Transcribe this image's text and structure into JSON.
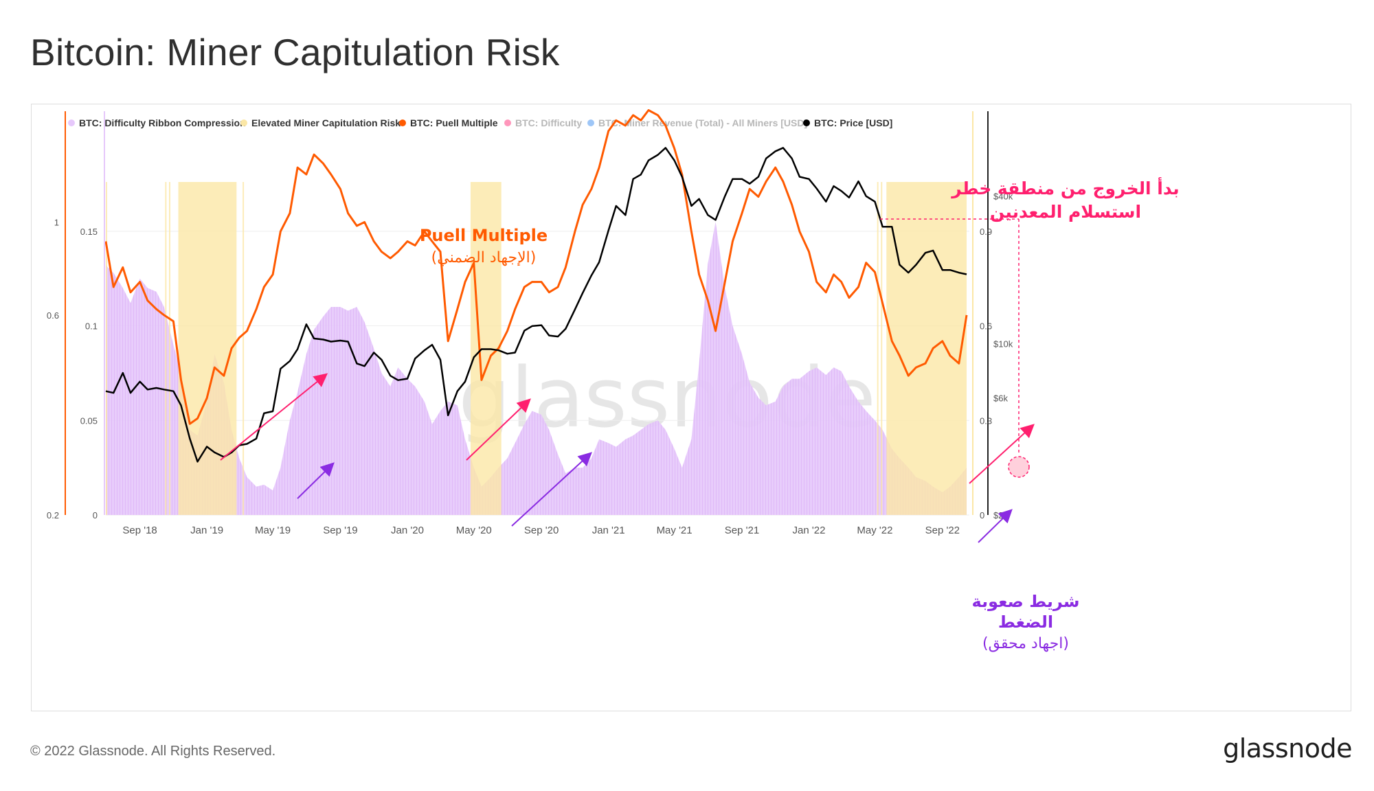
{
  "page": {
    "title": "Bitcoin: Miner Capitulation Risk",
    "copyright": "© 2022 Glassnode. All Rights Reserved.",
    "brand": "glassnode",
    "watermark": "glassnode"
  },
  "colors": {
    "ribbon": "#e6c8fb",
    "capitulation": "#fbe7a6",
    "puell": "#ff5a00",
    "difficulty": "#ff2d78",
    "revenue": "#3d8ef0",
    "price": "#000000",
    "annotation_pink": "#ff1f6e",
    "annotation_purple": "#8a2be2"
  },
  "chart_data": {
    "type": "line",
    "title": "Bitcoin: Miner Capitulation Risk",
    "legend": [
      {
        "name": "BTC: Difficulty Ribbon Compression",
        "color": "#e6c8fb",
        "active": true
      },
      {
        "name": "Elevated Miner Capitulation Risk",
        "color": "#fbe7a6",
        "active": true
      },
      {
        "name": "BTC: Puell Multiple",
        "color": "#ff5a00",
        "active": true
      },
      {
        "name": "BTC: Difficulty",
        "color": "#ff2d78",
        "active": false
      },
      {
        "name": "BTC: Miner Revenue (Total) - All Miners [USD]",
        "color": "#3d8ef0",
        "active": false
      },
      {
        "name": "BTC: Price [USD]",
        "color": "#000000",
        "active": true
      }
    ],
    "legend_position": "top",
    "x_range": [
      "2018-07-01",
      "2022-10-20"
    ],
    "x_ticks": [
      {
        "label": "Sep '18",
        "date": "2018-09-01"
      },
      {
        "label": "Jan '19",
        "date": "2019-01-01"
      },
      {
        "label": "May '19",
        "date": "2019-05-01"
      },
      {
        "label": "Sep '19",
        "date": "2019-09-01"
      },
      {
        "label": "Jan '20",
        "date": "2020-01-01"
      },
      {
        "label": "May '20",
        "date": "2020-05-01"
      },
      {
        "label": "Sep '20",
        "date": "2020-09-01"
      },
      {
        "label": "Jan '21",
        "date": "2021-01-01"
      },
      {
        "label": "May '21",
        "date": "2021-05-01"
      },
      {
        "label": "Sep '21",
        "date": "2021-09-01"
      },
      {
        "label": "Jan '22",
        "date": "2022-01-01"
      },
      {
        "label": "May '22",
        "date": "2022-05-01"
      },
      {
        "label": "Sep '22",
        "date": "2022-09-01"
      }
    ],
    "axes": {
      "puell_left": {
        "range": [
          0.2,
          1.6
        ],
        "ticks": [
          "0.2",
          "0.6",
          "1"
        ],
        "tick_values": [
          0.2,
          0.6,
          1.0
        ],
        "scale": "log"
      },
      "ribbon_left": {
        "range": [
          0,
          0.2
        ],
        "ticks": [
          "0",
          "0.05",
          "0.1",
          "0.15"
        ],
        "tick_values": [
          0,
          0.05,
          0.1,
          0.15
        ]
      },
      "ribbon_right": {
        "range": [
          0,
          1.2
        ],
        "ticks": [
          "0",
          "0.3",
          "0.6",
          "0.9"
        ],
        "tick_values": [
          0,
          0.3,
          0.6,
          0.9
        ]
      },
      "price_right": {
        "range": [
          2000,
          70000
        ],
        "ticks": [
          "$2k",
          "$6k",
          "$10k",
          "$40k"
        ],
        "tick_values": [
          2000,
          6000,
          10000,
          40000
        ],
        "scale": "log"
      }
    },
    "grid": true,
    "capitulation_periods": [
      [
        "2018-07-01",
        "2018-07-02"
      ],
      [
        "2018-10-17",
        "2018-10-19"
      ],
      [
        "2018-10-24",
        "2018-10-26"
      ],
      [
        "2018-11-10",
        "2019-02-24"
      ],
      [
        "2019-03-07",
        "2019-03-09"
      ],
      [
        "2020-04-25",
        "2020-06-20"
      ],
      [
        "2022-05-05",
        "2022-05-07"
      ],
      [
        "2022-05-12",
        "2022-05-14"
      ],
      [
        "2022-05-22",
        "2022-10-15"
      ]
    ],
    "series": [
      {
        "name": "BTC: Difficulty Ribbon Compression",
        "axis": "ribbon_left",
        "x": [
          "2018-07-01",
          "2018-07-15",
          "2018-08-01",
          "2018-08-15",
          "2018-09-01",
          "2018-09-15",
          "2018-10-01",
          "2018-10-15",
          "2018-11-01",
          "2018-11-15",
          "2018-12-01",
          "2018-12-15",
          "2019-01-01",
          "2019-01-15",
          "2019-02-01",
          "2019-02-15",
          "2019-03-01",
          "2019-03-15",
          "2019-04-01",
          "2019-04-15",
          "2019-05-01",
          "2019-05-15",
          "2019-06-01",
          "2019-06-15",
          "2019-07-01",
          "2019-07-15",
          "2019-08-01",
          "2019-08-15",
          "2019-09-01",
          "2019-09-15",
          "2019-10-01",
          "2019-10-15",
          "2019-11-01",
          "2019-11-15",
          "2019-12-01",
          "2019-12-15",
          "2020-01-01",
          "2020-01-15",
          "2020-02-01",
          "2020-02-15",
          "2020-03-01",
          "2020-03-15",
          "2020-04-01",
          "2020-04-15",
          "2020-05-01",
          "2020-05-15",
          "2020-06-01",
          "2020-06-15",
          "2020-07-01",
          "2020-07-15",
          "2020-08-01",
          "2020-08-15",
          "2020-09-01",
          "2020-09-15",
          "2020-10-01",
          "2020-10-15",
          "2020-11-01",
          "2020-11-15",
          "2020-12-01",
          "2020-12-15",
          "2021-01-01",
          "2021-01-15",
          "2021-02-01",
          "2021-02-15",
          "2021-03-01",
          "2021-03-15",
          "2021-04-01",
          "2021-04-15",
          "2021-05-01",
          "2021-05-15",
          "2021-06-01",
          "2021-06-15",
          "2021-07-01",
          "2021-07-15",
          "2021-08-01",
          "2021-08-15",
          "2021-09-01",
          "2021-09-15",
          "2021-10-01",
          "2021-10-15",
          "2021-11-01",
          "2021-11-15",
          "2021-12-01",
          "2021-12-15",
          "2022-01-01",
          "2022-01-15",
          "2022-02-01",
          "2022-02-15",
          "2022-03-01",
          "2022-03-15",
          "2022-04-01",
          "2022-04-15",
          "2022-05-01",
          "2022-05-15",
          "2022-06-01",
          "2022-06-15",
          "2022-07-01",
          "2022-07-15",
          "2022-08-01",
          "2022-08-15",
          "2022-09-01",
          "2022-09-15",
          "2022-10-01",
          "2022-10-15"
        ],
        "values": [
          0.132,
          0.128,
          0.12,
          0.112,
          0.125,
          0.12,
          0.118,
          0.11,
          0.09,
          0.075,
          0.045,
          0.042,
          0.06,
          0.085,
          0.07,
          0.045,
          0.03,
          0.02,
          0.015,
          0.016,
          0.013,
          0.025,
          0.05,
          0.065,
          0.085,
          0.098,
          0.105,
          0.11,
          0.11,
          0.108,
          0.11,
          0.102,
          0.088,
          0.075,
          0.068,
          0.078,
          0.072,
          0.068,
          0.06,
          0.048,
          0.055,
          0.06,
          0.058,
          0.04,
          0.025,
          0.015,
          0.02,
          0.025,
          0.03,
          0.038,
          0.048,
          0.055,
          0.053,
          0.045,
          0.032,
          0.022,
          0.025,
          0.025,
          0.03,
          0.04,
          0.038,
          0.036,
          0.04,
          0.042,
          0.045,
          0.048,
          0.05,
          0.045,
          0.035,
          0.025,
          0.04,
          0.08,
          0.133,
          0.155,
          0.12,
          0.1,
          0.085,
          0.07,
          0.062,
          0.058,
          0.06,
          0.068,
          0.072,
          0.072,
          0.076,
          0.078,
          0.074,
          0.078,
          0.076,
          0.068,
          0.06,
          0.055,
          0.05,
          0.045,
          0.035,
          0.03,
          0.025,
          0.02,
          0.018,
          0.015,
          0.012,
          0.015,
          0.02,
          0.025
        ]
      },
      {
        "name": "BTC: Puell Multiple",
        "axis": "puell_left",
        "x": [
          "2018-07-01",
          "2018-07-15",
          "2018-08-01",
          "2018-08-15",
          "2018-09-01",
          "2018-09-15",
          "2018-10-01",
          "2018-10-15",
          "2018-11-01",
          "2018-11-15",
          "2018-12-01",
          "2018-12-15",
          "2019-01-01",
          "2019-01-15",
          "2019-02-01",
          "2019-02-15",
          "2019-03-01",
          "2019-03-15",
          "2019-04-01",
          "2019-04-15",
          "2019-05-01",
          "2019-05-15",
          "2019-06-01",
          "2019-06-15",
          "2019-07-01",
          "2019-07-15",
          "2019-08-01",
          "2019-08-15",
          "2019-09-01",
          "2019-09-15",
          "2019-10-01",
          "2019-10-15",
          "2019-11-01",
          "2019-11-15",
          "2019-12-01",
          "2019-12-15",
          "2020-01-01",
          "2020-01-15",
          "2020-02-01",
          "2020-02-15",
          "2020-03-01",
          "2020-03-15",
          "2020-04-01",
          "2020-04-15",
          "2020-05-01",
          "2020-05-15",
          "2020-06-01",
          "2020-06-15",
          "2020-07-01",
          "2020-07-15",
          "2020-08-01",
          "2020-08-15",
          "2020-09-01",
          "2020-09-15",
          "2020-10-01",
          "2020-10-15",
          "2020-11-01",
          "2020-11-15",
          "2020-12-01",
          "2020-12-15",
          "2021-01-01",
          "2021-01-15",
          "2021-02-01",
          "2021-02-15",
          "2021-03-01",
          "2021-03-15",
          "2021-04-01",
          "2021-04-15",
          "2021-05-01",
          "2021-05-15",
          "2021-06-01",
          "2021-06-15",
          "2021-07-01",
          "2021-07-15",
          "2021-08-01",
          "2021-08-15",
          "2021-09-01",
          "2021-09-15",
          "2021-10-01",
          "2021-10-15",
          "2021-11-01",
          "2021-11-15",
          "2021-12-01",
          "2021-12-15",
          "2022-01-01",
          "2022-01-15",
          "2022-02-01",
          "2022-02-15",
          "2022-03-01",
          "2022-03-15",
          "2022-04-01",
          "2022-04-15",
          "2022-05-01",
          "2022-05-15",
          "2022-06-01",
          "2022-06-15",
          "2022-07-01",
          "2022-07-15",
          "2022-08-01",
          "2022-08-15",
          "2022-09-01",
          "2022-09-15",
          "2022-10-01",
          "2022-10-15"
        ],
        "values": [
          0.9,
          0.7,
          0.78,
          0.68,
          0.72,
          0.65,
          0.62,
          0.6,
          0.58,
          0.42,
          0.33,
          0.34,
          0.38,
          0.45,
          0.43,
          0.5,
          0.53,
          0.55,
          0.62,
          0.7,
          0.75,
          0.95,
          1.05,
          1.35,
          1.3,
          1.45,
          1.38,
          1.3,
          1.2,
          1.05,
          0.98,
          1.0,
          0.9,
          0.85,
          0.82,
          0.85,
          0.9,
          0.88,
          0.95,
          0.9,
          0.85,
          0.52,
          0.62,
          0.72,
          0.8,
          0.42,
          0.48,
          0.5,
          0.55,
          0.62,
          0.7,
          0.72,
          0.72,
          0.68,
          0.7,
          0.78,
          0.95,
          1.1,
          1.2,
          1.35,
          1.65,
          1.75,
          1.7,
          1.8,
          1.75,
          1.85,
          1.8,
          1.7,
          1.5,
          1.3,
          0.95,
          0.75,
          0.65,
          0.55,
          0.72,
          0.9,
          1.05,
          1.2,
          1.15,
          1.25,
          1.35,
          1.25,
          1.1,
          0.95,
          0.85,
          0.72,
          0.68,
          0.75,
          0.72,
          0.66,
          0.7,
          0.8,
          0.76,
          0.64,
          0.52,
          0.48,
          0.43,
          0.45,
          0.46,
          0.5,
          0.52,
          0.48,
          0.46,
          0.6
        ]
      },
      {
        "name": "BTC: Price [USD]",
        "axis": "price_right",
        "x": [
          "2018-07-01",
          "2018-07-15",
          "2018-08-01",
          "2018-08-15",
          "2018-09-01",
          "2018-09-15",
          "2018-10-01",
          "2018-10-15",
          "2018-11-01",
          "2018-11-15",
          "2018-12-01",
          "2018-12-15",
          "2019-01-01",
          "2019-01-15",
          "2019-02-01",
          "2019-02-15",
          "2019-03-01",
          "2019-03-15",
          "2019-04-01",
          "2019-04-15",
          "2019-05-01",
          "2019-05-15",
          "2019-06-01",
          "2019-06-15",
          "2019-07-01",
          "2019-07-15",
          "2019-08-01",
          "2019-08-15",
          "2019-09-01",
          "2019-09-15",
          "2019-10-01",
          "2019-10-15",
          "2019-11-01",
          "2019-11-15",
          "2019-12-01",
          "2019-12-15",
          "2020-01-01",
          "2020-01-15",
          "2020-02-01",
          "2020-02-15",
          "2020-03-01",
          "2020-03-15",
          "2020-04-01",
          "2020-04-15",
          "2020-05-01",
          "2020-05-15",
          "2020-06-01",
          "2020-06-15",
          "2020-07-01",
          "2020-07-15",
          "2020-08-01",
          "2020-08-15",
          "2020-09-01",
          "2020-09-15",
          "2020-10-01",
          "2020-10-15",
          "2020-11-01",
          "2020-11-15",
          "2020-12-01",
          "2020-12-15",
          "2021-01-01",
          "2021-01-15",
          "2021-02-01",
          "2021-02-15",
          "2021-03-01",
          "2021-03-15",
          "2021-04-01",
          "2021-04-15",
          "2021-05-01",
          "2021-05-15",
          "2021-06-01",
          "2021-06-15",
          "2021-07-01",
          "2021-07-15",
          "2021-08-01",
          "2021-08-15",
          "2021-09-01",
          "2021-09-15",
          "2021-10-01",
          "2021-10-15",
          "2021-11-01",
          "2021-11-15",
          "2021-12-01",
          "2021-12-15",
          "2022-01-01",
          "2022-01-15",
          "2022-02-01",
          "2022-02-15",
          "2022-03-01",
          "2022-03-15",
          "2022-04-01",
          "2022-04-15",
          "2022-05-01",
          "2022-05-15",
          "2022-06-01",
          "2022-06-15",
          "2022-07-01",
          "2022-07-15",
          "2022-08-01",
          "2022-08-15",
          "2022-09-01",
          "2022-09-15",
          "2022-10-01",
          "2022-10-15"
        ],
        "values": [
          6400,
          6300,
          7600,
          6300,
          7000,
          6500,
          6600,
          6500,
          6400,
          5600,
          4100,
          3300,
          3800,
          3600,
          3450,
          3600,
          3850,
          3900,
          4100,
          5200,
          5300,
          7900,
          8500,
          9500,
          12000,
          10500,
          10400,
          10200,
          10300,
          10200,
          8300,
          8100,
          9200,
          8600,
          7400,
          7100,
          7200,
          8700,
          9400,
          9900,
          8600,
          5100,
          6400,
          7000,
          8800,
          9500,
          9500,
          9400,
          9100,
          9200,
          11300,
          11800,
          11900,
          10800,
          10700,
          11500,
          13800,
          16100,
          19000,
          21500,
          29000,
          36500,
          33500,
          47000,
          49000,
          56000,
          59000,
          63000,
          56000,
          48000,
          36500,
          39000,
          33500,
          32000,
          40000,
          47000,
          47000,
          45000,
          48000,
          57000,
          61000,
          63000,
          57000,
          48000,
          47000,
          43000,
          38000,
          44000,
          42000,
          39500,
          46000,
          40000,
          38000,
          30000,
          30000,
          21000,
          19500,
          21000,
          23500,
          24000,
          20000,
          20000,
          19500,
          19200
        ]
      }
    ],
    "annotations": [
      {
        "text": "Puell Multiple",
        "color": "#ff5a00"
      },
      {
        "text": "(الإجهاد الضمني)",
        "color": "#ff5a00"
      },
      {
        "text": "بدأ الخروج من منطقة خطر",
        "color": "#ff1f6e"
      },
      {
        "text": "استسلام المعدنين",
        "color": "#ff1f6e"
      },
      {
        "text": "شريط صعوبة",
        "color": "#8a2be2"
      },
      {
        "text": "الضغط",
        "color": "#8a2be2"
      },
      {
        "text": "(اجهاد محقق)",
        "color": "#8a2be2"
      }
    ]
  }
}
